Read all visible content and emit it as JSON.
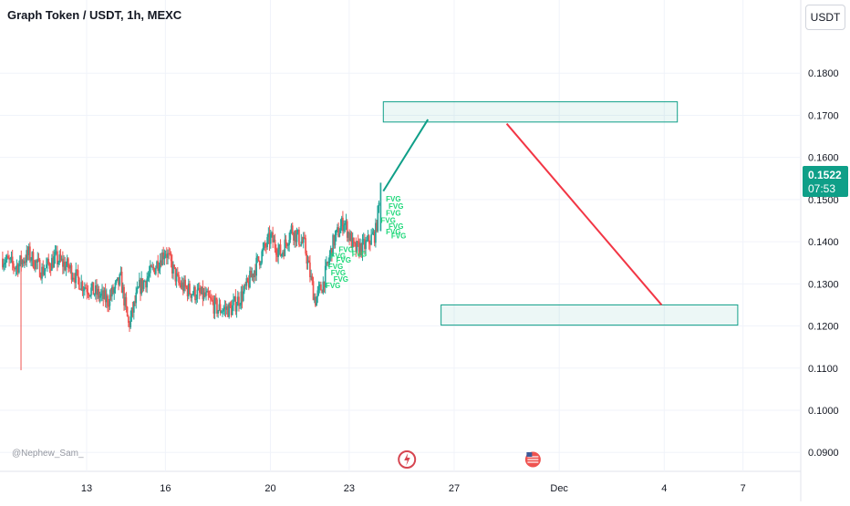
{
  "header": {
    "title": "Graph Token / USDT, 1h, MEXC"
  },
  "axis": {
    "currency_button": "USDT"
  },
  "price_tag": {
    "price": "0.1522",
    "countdown": "07:53"
  },
  "watermark": "@Nephew_Sam_",
  "colors": {
    "up": "#26a69a",
    "down": "#ef5350",
    "target_line_up": "#0f9f88",
    "target_line_down": "#f23645",
    "zone_border": "#0f9f88",
    "fvg_text": "#1fd87a"
  },
  "chart_data": {
    "type": "candlestick",
    "title": "Graph Token / USDT, 1h, MEXC",
    "y_ticks": [
      "0.1800",
      "0.1700",
      "0.1600",
      "0.1500",
      "0.1400",
      "0.1300",
      "0.1200",
      "0.1100",
      "0.1000",
      "0.0900"
    ],
    "y_range": [
      0.0855,
      0.19
    ],
    "x_ticks": [
      {
        "label": "13",
        "day": 13
      },
      {
        "label": "16",
        "day": 16
      },
      {
        "label": "20",
        "day": 20
      },
      {
        "label": "23",
        "day": 23
      },
      {
        "label": "27",
        "day": 27
      },
      {
        "label": "Dec",
        "day": 31
      },
      {
        "label": "4",
        "day": 35
      },
      {
        "label": "7",
        "day": 38
      }
    ],
    "x_range": [
      9.7,
      40.2
    ],
    "price_series_day_close": [
      [
        9.8,
        0.136
      ],
      [
        10.3,
        0.134
      ],
      [
        10.8,
        0.137
      ],
      [
        11.3,
        0.133
      ],
      [
        11.8,
        0.136
      ],
      [
        12.3,
        0.134
      ],
      [
        12.8,
        0.13
      ],
      [
        13.3,
        0.128
      ],
      [
        13.8,
        0.126
      ],
      [
        14.3,
        0.131
      ],
      [
        14.6,
        0.12
      ],
      [
        15.0,
        0.129
      ],
      [
        15.5,
        0.133
      ],
      [
        16.0,
        0.138
      ],
      [
        16.5,
        0.13
      ],
      [
        17.0,
        0.128
      ],
      [
        17.5,
        0.127
      ],
      [
        18.0,
        0.124
      ],
      [
        18.5,
        0.124
      ],
      [
        19.0,
        0.128
      ],
      [
        19.5,
        0.135
      ],
      [
        20.0,
        0.141
      ],
      [
        20.4,
        0.137
      ],
      [
        20.8,
        0.143
      ],
      [
        21.3,
        0.139
      ],
      [
        21.7,
        0.126
      ],
      [
        22.0,
        0.13
      ],
      [
        22.4,
        0.14
      ],
      [
        22.8,
        0.145
      ],
      [
        23.2,
        0.138
      ],
      [
        23.6,
        0.139
      ],
      [
        24.0,
        0.142
      ],
      [
        24.2,
        0.152
      ]
    ],
    "anomalous_low": {
      "day": 10.5,
      "low": 0.1095
    },
    "fvg_label": "FVG",
    "fvg_count": 15,
    "zones": [
      {
        "label": "upper",
        "from_day": 24.3,
        "to_day": 35.5,
        "price_top": 0.1732,
        "price_bottom": 0.1684
      },
      {
        "label": "lower",
        "from_day": 26.5,
        "to_day": 37.8,
        "price_top": 0.125,
        "price_bottom": 0.1202
      }
    ],
    "projection_lines": [
      {
        "color": "up",
        "from": [
          24.3,
          0.152
        ],
        "to": [
          26.0,
          0.169
        ]
      },
      {
        "color": "down",
        "from": [
          29.0,
          0.168
        ],
        "to": [
          34.9,
          0.125
        ]
      }
    ],
    "event_icons": [
      "lightning-icon",
      "us-flag-icon"
    ],
    "grid": true
  }
}
